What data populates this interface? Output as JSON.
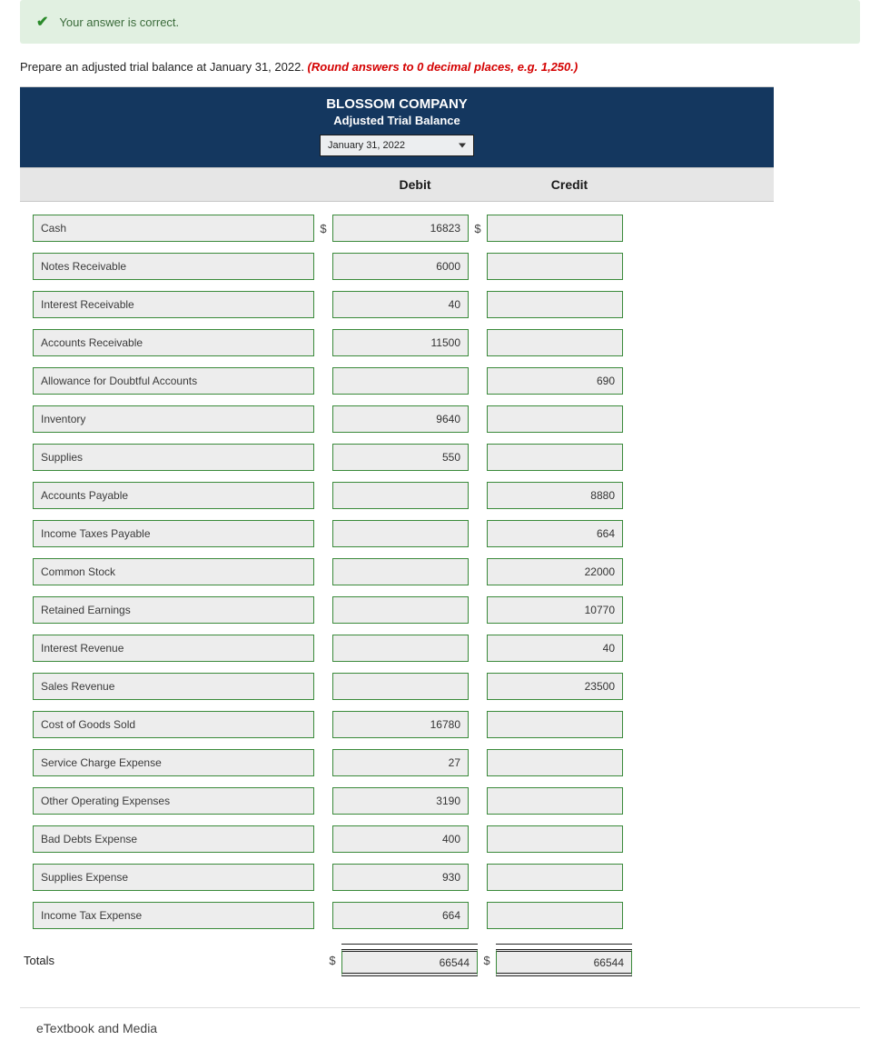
{
  "banner": {
    "text": "Your answer is correct."
  },
  "instruction": {
    "plain": "Prepare an adjusted trial balance at January 31, 2022. ",
    "emph": "(Round answers to 0 decimal places, e.g. 1,250.)"
  },
  "title": {
    "company": "BLOSSOM COMPANY",
    "subtitle": "Adjusted Trial Balance",
    "date_selected": "January 31, 2022"
  },
  "columns": {
    "debit": "Debit",
    "credit": "Credit"
  },
  "currency_symbol": "$",
  "totals_label": "Totals",
  "totals": {
    "debit": "66544",
    "credit": "66544"
  },
  "etextbook_label": "eTextbook and Media",
  "rows": [
    {
      "account": "Cash",
      "debit": "16823",
      "credit": "",
      "show_sym": true
    },
    {
      "account": "Notes Receivable",
      "debit": "6000",
      "credit": "",
      "show_sym": false
    },
    {
      "account": "Interest Receivable",
      "debit": "40",
      "credit": "",
      "show_sym": false
    },
    {
      "account": "Accounts Receivable",
      "debit": "11500",
      "credit": "",
      "show_sym": false
    },
    {
      "account": "Allowance for Doubtful Accounts",
      "debit": "",
      "credit": "690",
      "show_sym": false
    },
    {
      "account": "Inventory",
      "debit": "9640",
      "credit": "",
      "show_sym": false
    },
    {
      "account": "Supplies",
      "debit": "550",
      "credit": "",
      "show_sym": false
    },
    {
      "account": "Accounts Payable",
      "debit": "",
      "credit": "8880",
      "show_sym": false
    },
    {
      "account": "Income Taxes Payable",
      "debit": "",
      "credit": "664",
      "show_sym": false
    },
    {
      "account": "Common Stock",
      "debit": "",
      "credit": "22000",
      "show_sym": false
    },
    {
      "account": "Retained Earnings",
      "debit": "",
      "credit": "10770",
      "show_sym": false
    },
    {
      "account": "Interest Revenue",
      "debit": "",
      "credit": "40",
      "show_sym": false
    },
    {
      "account": "Sales Revenue",
      "debit": "",
      "credit": "23500",
      "show_sym": false
    },
    {
      "account": "Cost of Goods Sold",
      "debit": "16780",
      "credit": "",
      "show_sym": false
    },
    {
      "account": "Service Charge Expense",
      "debit": "27",
      "credit": "",
      "show_sym": false
    },
    {
      "account": "Other Operating Expenses",
      "debit": "3190",
      "credit": "",
      "show_sym": false
    },
    {
      "account": "Bad Debts Expense",
      "debit": "400",
      "credit": "",
      "show_sym": false
    },
    {
      "account": "Supplies Expense",
      "debit": "930",
      "credit": "",
      "show_sym": false
    },
    {
      "account": "Income Tax Expense",
      "debit": "664",
      "credit": "",
      "show_sym": false
    }
  ],
  "style": {
    "colors": {
      "banner_bg": "#e1f0e1",
      "title_bg": "#14375f",
      "input_border": "#3a8a3a",
      "input_bg": "#ededed",
      "header_bg": "#e6e6e6",
      "emph_text": "#d40000"
    },
    "widths": {
      "page": 969,
      "table": 830,
      "account_box": 310,
      "value_box": 150
    },
    "fontsizes": {
      "body": 12,
      "title": 15,
      "header": 14
    }
  }
}
